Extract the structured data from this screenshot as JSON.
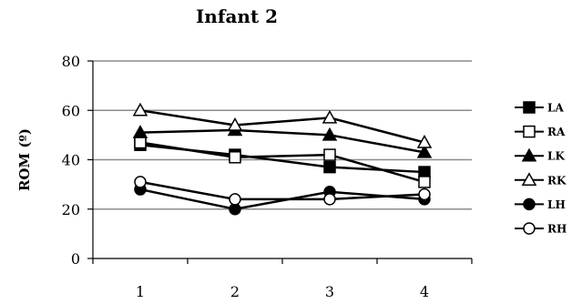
{
  "chart_data": {
    "type": "line",
    "title": "Infant 2",
    "xlabel": "",
    "ylabel": "ROM (º)",
    "categories": [
      "1",
      "2",
      "3",
      "4"
    ],
    "ylim": [
      0,
      80
    ],
    "yticks": [
      "0",
      "20",
      "40",
      "60",
      "80"
    ],
    "grid": "horizontal",
    "legend_position": "right",
    "series": [
      {
        "name": "LA",
        "marker": "filled-square",
        "values": [
          46,
          42,
          37,
          35
        ]
      },
      {
        "name": "RA",
        "marker": "open-square",
        "values": [
          47,
          41,
          42,
          31
        ]
      },
      {
        "name": "LK",
        "marker": "filled-triangle",
        "values": [
          51,
          52,
          50,
          43
        ]
      },
      {
        "name": "RK",
        "marker": "open-triangle",
        "values": [
          60,
          54,
          57,
          47
        ]
      },
      {
        "name": "LH",
        "marker": "filled-circle",
        "values": [
          28,
          20,
          27,
          24
        ]
      },
      {
        "name": "RH",
        "marker": "open-circle",
        "values": [
          31,
          24,
          24,
          26
        ]
      }
    ]
  }
}
